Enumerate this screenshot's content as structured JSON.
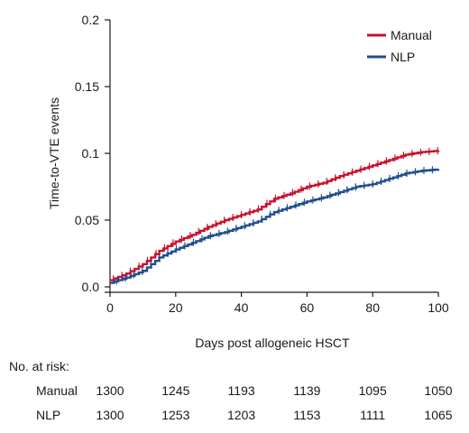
{
  "chart_data": {
    "type": "line",
    "title": "",
    "xlabel": "Days post allogeneic HSCT",
    "ylabel": "Time-to-VTE events",
    "xlim": [
      0,
      100
    ],
    "ylim": [
      0,
      0.2
    ],
    "x_ticks": [
      "0",
      "20",
      "40",
      "60",
      "80",
      "100"
    ],
    "y_ticks": [
      "0.0",
      "0.05",
      "0.1",
      "0.15",
      "0.2"
    ],
    "grid": false,
    "legend_position": "top-right",
    "series": [
      {
        "name": "Manual",
        "color": "#c8102e",
        "x": [
          0,
          5,
          10,
          15,
          20,
          25,
          30,
          35,
          40,
          45,
          50,
          55,
          60,
          65,
          70,
          75,
          80,
          85,
          90,
          95,
          100
        ],
        "y": [
          0.005,
          0.01,
          0.017,
          0.027,
          0.034,
          0.039,
          0.045,
          0.05,
          0.054,
          0.058,
          0.066,
          0.07,
          0.075,
          0.078,
          0.083,
          0.087,
          0.091,
          0.095,
          0.099,
          0.101,
          0.102
        ]
      },
      {
        "name": "NLP",
        "color": "#1f4e8c",
        "x": [
          0,
          5,
          10,
          15,
          20,
          25,
          30,
          35,
          40,
          45,
          50,
          55,
          60,
          65,
          70,
          75,
          80,
          85,
          90,
          95,
          100
        ],
        "y": [
          0.003,
          0.007,
          0.012,
          0.022,
          0.028,
          0.033,
          0.038,
          0.041,
          0.045,
          0.049,
          0.056,
          0.06,
          0.064,
          0.067,
          0.071,
          0.075,
          0.077,
          0.081,
          0.085,
          0.087,
          0.088
        ]
      }
    ]
  },
  "risk_table": {
    "title": "No. at risk:",
    "timepoints": [
      0,
      20,
      40,
      60,
      80,
      100
    ],
    "rows": [
      {
        "label": "Manual",
        "values": [
          "1300",
          "1245",
          "1193",
          "1139",
          "1095",
          "1050"
        ]
      },
      {
        "label": "NLP",
        "values": [
          "1300",
          "1253",
          "1203",
          "1153",
          "1111",
          "1065"
        ]
      }
    ]
  }
}
